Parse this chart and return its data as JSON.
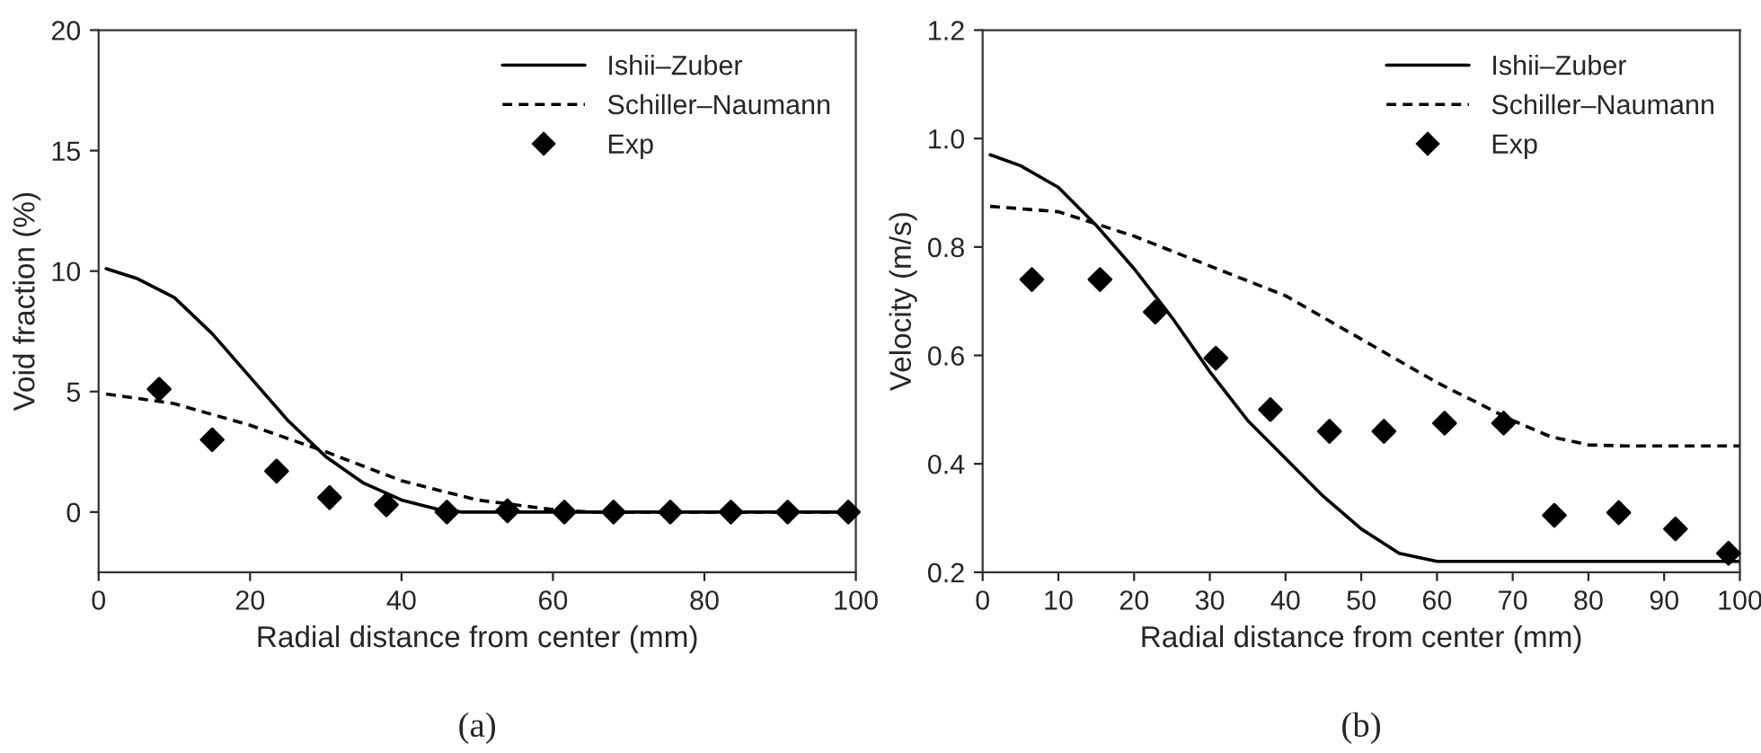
{
  "chart_data": [
    {
      "type": "line",
      "xlabel": "Radial distance from center (mm)",
      "ylabel": "Void fraction (%)",
      "annotations": [
        "(a)"
      ],
      "xlim": [
        0,
        100
      ],
      "xticks": [
        0,
        20,
        40,
        60,
        80,
        100
      ],
      "ylim": [
        -2.5,
        20
      ],
      "yticks": [
        0,
        5,
        10,
        15,
        20
      ],
      "grid": false,
      "legend": "top right",
      "series": [
        {
          "name": "Ishii–Zuber",
          "color": "#000000",
          "line_style": "solid",
          "marker": "none",
          "x": [
            1,
            5,
            10,
            15,
            20,
            25,
            30,
            35,
            40,
            45,
            48,
            100
          ],
          "values": [
            10.1,
            9.7,
            8.9,
            7.4,
            5.6,
            3.8,
            2.3,
            1.2,
            0.5,
            0.1,
            0,
            0
          ]
        },
        {
          "name": "Schiller–Naumann",
          "color": "#000000",
          "line_style": "dashed",
          "marker": "none",
          "x": [
            1,
            10,
            20,
            30,
            40,
            50,
            60,
            65,
            100
          ],
          "values": [
            4.9,
            4.5,
            3.6,
            2.5,
            1.3,
            0.5,
            0.1,
            0,
            0
          ]
        },
        {
          "name": "Exp",
          "type": "scatter",
          "color": "#000000",
          "marker": "diamond",
          "x": [
            8,
            15,
            23.5,
            30.5,
            38,
            46,
            54,
            61.5,
            68,
            75.5,
            83.5,
            91,
            99
          ],
          "values": [
            5.1,
            3.0,
            1.7,
            0.6,
            0.3,
            0,
            0.05,
            0,
            0,
            0,
            0,
            0,
            0
          ]
        }
      ]
    },
    {
      "type": "line",
      "xlabel": "Radial distance from center (mm)",
      "ylabel": "Velocity (m/s)",
      "annotations": [
        "(b)"
      ],
      "xlim": [
        0,
        100
      ],
      "xticks": [
        0,
        10,
        20,
        30,
        40,
        50,
        60,
        70,
        80,
        90,
        100
      ],
      "ylim": [
        0.2,
        1.2
      ],
      "yticks": [
        {
          "value": 0.2,
          "label": "0.2"
        },
        {
          "value": 0.4,
          "label": "0.4"
        },
        {
          "value": 0.6,
          "label": "0.6"
        },
        {
          "value": 0.8,
          "label": "0.8"
        },
        {
          "value": 1.0,
          "label": "1.0"
        },
        {
          "value": 1.2,
          "label": "1.2"
        }
      ],
      "grid": false,
      "legend": "top right",
      "series": [
        {
          "name": "Ishii–Zuber",
          "color": "#000000",
          "line_style": "solid",
          "marker": "none",
          "x": [
            1,
            5,
            10,
            15,
            20,
            25,
            30,
            35,
            40,
            45,
            50,
            55,
            60,
            100
          ],
          "values": [
            0.97,
            0.95,
            0.91,
            0.84,
            0.76,
            0.67,
            0.57,
            0.48,
            0.41,
            0.34,
            0.28,
            0.235,
            0.22,
            0.22
          ]
        },
        {
          "name": "Schiller–Naumann",
          "color": "#000000",
          "line_style": "dashed",
          "marker": "none",
          "x": [
            1,
            10,
            20,
            30,
            40,
            50,
            60,
            70,
            75,
            80,
            85,
            100
          ],
          "values": [
            0.875,
            0.865,
            0.82,
            0.765,
            0.71,
            0.63,
            0.55,
            0.48,
            0.45,
            0.435,
            0.433,
            0.433
          ]
        },
        {
          "name": "Exp",
          "type": "scatter",
          "color": "#000000",
          "marker": "diamond",
          "x": [
            6.5,
            15.5,
            22.8,
            30.8,
            38,
            45.8,
            53,
            61,
            68.8,
            75.5,
            84,
            91.5,
            98.5
          ],
          "values": [
            0.74,
            0.74,
            0.68,
            0.595,
            0.5,
            0.46,
            0.46,
            0.475,
            0.475,
            0.305,
            0.31,
            0.28,
            0.235
          ]
        }
      ]
    }
  ]
}
